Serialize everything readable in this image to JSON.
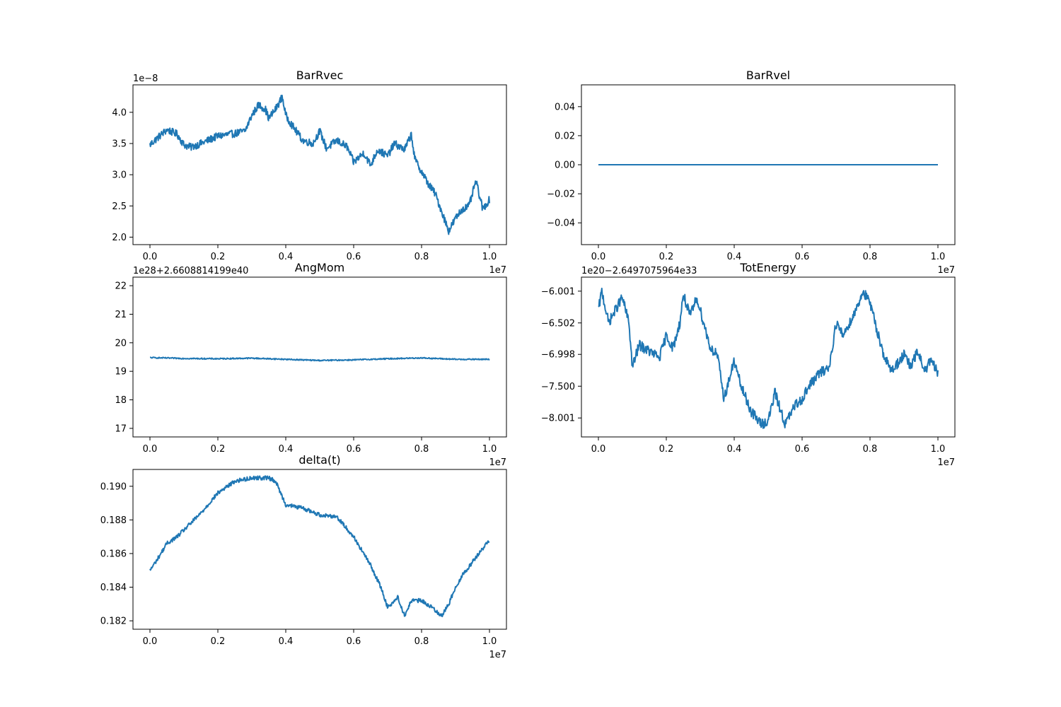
{
  "chart_data": [
    {
      "type": "line",
      "title": "BarRvec",
      "xlabel": "",
      "ylabel": "",
      "x_multiplier": "1e7",
      "y_offset": "1e−8",
      "xlim": [
        -0.05,
        1.05
      ],
      "ylim": [
        1.88,
        4.44
      ],
      "xticks": [
        0.0,
        0.2,
        0.4,
        0.6,
        0.8,
        1.0
      ],
      "xtick_labels": [
        "0.0",
        "0.2",
        "0.4",
        "0.6",
        "0.8",
        "1.0"
      ],
      "yticks": [
        2.0,
        2.5,
        3.0,
        3.5,
        4.0
      ],
      "ytick_labels": [
        "2.0",
        "2.5",
        "3.0",
        "3.5",
        "4.0"
      ],
      "line_color": "#1f77b4",
      "noise": 0.06,
      "x": [
        0.0,
        0.02,
        0.05,
        0.08,
        0.1,
        0.12,
        0.15,
        0.2,
        0.25,
        0.28,
        0.3,
        0.32,
        0.34,
        0.35,
        0.37,
        0.39,
        0.4,
        0.42,
        0.45,
        0.48,
        0.5,
        0.52,
        0.55,
        0.58,
        0.6,
        0.63,
        0.65,
        0.67,
        0.7,
        0.72,
        0.75,
        0.77,
        0.78,
        0.8,
        0.82,
        0.84,
        0.86,
        0.88,
        0.9,
        0.92,
        0.94,
        0.96,
        0.98,
        1.0
      ],
      "y": [
        3.48,
        3.58,
        3.72,
        3.65,
        3.48,
        3.44,
        3.5,
        3.62,
        3.66,
        3.7,
        3.95,
        4.12,
        4.05,
        3.9,
        4.05,
        4.25,
        3.95,
        3.78,
        3.55,
        3.5,
        3.7,
        3.42,
        3.55,
        3.45,
        3.2,
        3.35,
        3.15,
        3.4,
        3.3,
        3.5,
        3.4,
        3.65,
        3.25,
        3.05,
        2.85,
        2.7,
        2.4,
        2.1,
        2.3,
        2.45,
        2.5,
        2.9,
        2.45,
        2.6
      ]
    },
    {
      "type": "line",
      "title": "BarRvel",
      "xlabel": "",
      "ylabel": "",
      "x_multiplier": "1e7",
      "y_offset": "",
      "xlim": [
        -0.05,
        1.05
      ],
      "ylim": [
        -0.055,
        0.055
      ],
      "xticks": [
        0.0,
        0.2,
        0.4,
        0.6,
        0.8,
        1.0
      ],
      "xtick_labels": [
        "0.0",
        "0.2",
        "0.4",
        "0.6",
        "0.8",
        "1.0"
      ],
      "yticks": [
        -0.04,
        -0.02,
        0.0,
        0.02,
        0.04
      ],
      "ytick_labels": [
        "−0.04",
        "−0.02",
        "0.00",
        "0.02",
        "0.04"
      ],
      "line_color": "#1f77b4",
      "noise": 0,
      "x": [
        0.0,
        1.0
      ],
      "y": [
        0.0,
        0.0
      ]
    },
    {
      "type": "line",
      "title": "AngMom",
      "xlabel": "",
      "ylabel": "",
      "x_multiplier": "1e7",
      "y_offset": "1e28+2.6608814199e40",
      "xlim": [
        -0.05,
        1.05
      ],
      "ylim": [
        16.7,
        22.3
      ],
      "xticks": [
        0.0,
        0.2,
        0.4,
        0.6,
        0.8,
        1.0
      ],
      "xtick_labels": [
        "0.0",
        "0.2",
        "0.4",
        "0.6",
        "0.8",
        "1.0"
      ],
      "yticks": [
        17,
        18,
        19,
        20,
        21,
        22
      ],
      "ytick_labels": [
        "17",
        "18",
        "19",
        "20",
        "21",
        "22"
      ],
      "line_color": "#1f77b4",
      "noise": 0.02,
      "x": [
        0.0,
        0.1,
        0.2,
        0.3,
        0.4,
        0.5,
        0.6,
        0.7,
        0.8,
        0.9,
        1.0
      ],
      "y": [
        19.48,
        19.45,
        19.44,
        19.46,
        19.42,
        19.38,
        19.4,
        19.44,
        19.47,
        19.42,
        19.42
      ]
    },
    {
      "type": "line",
      "title": "TotEnergy",
      "xlabel": "",
      "ylabel": "",
      "x_multiplier": "1e7",
      "y_offset": "1e20−2.6497075964e33",
      "xlim": [
        -0.05,
        1.05
      ],
      "ylim": [
        -8.3,
        -5.78
      ],
      "xticks": [
        0.0,
        0.2,
        0.4,
        0.6,
        0.8,
        1.0
      ],
      "xtick_labels": [
        "0.0",
        "0.2",
        "0.4",
        "0.6",
        "0.8",
        "1.0"
      ],
      "yticks": [
        -8.001,
        -7.5,
        -6.998,
        -6.502,
        -6.001
      ],
      "ytick_labels": [
        "−8.001",
        "−7.500",
        "−6.998",
        "−6.502",
        "−6.001"
      ],
      "line_color": "#1f77b4",
      "noise": 0.08,
      "x": [
        0.0,
        0.01,
        0.03,
        0.05,
        0.07,
        0.09,
        0.1,
        0.12,
        0.15,
        0.18,
        0.2,
        0.22,
        0.24,
        0.25,
        0.27,
        0.29,
        0.31,
        0.33,
        0.35,
        0.37,
        0.4,
        0.42,
        0.45,
        0.48,
        0.5,
        0.52,
        0.55,
        0.58,
        0.6,
        0.62,
        0.65,
        0.68,
        0.7,
        0.72,
        0.75,
        0.78,
        0.8,
        0.82,
        0.84,
        0.86,
        0.88,
        0.9,
        0.92,
        0.94,
        0.96,
        0.98,
        1.0
      ],
      "y": [
        -6.3,
        -6.0,
        -6.5,
        -6.3,
        -6.1,
        -6.5,
        -7.2,
        -6.85,
        -6.95,
        -7.05,
        -6.7,
        -6.9,
        -6.5,
        -6.05,
        -6.4,
        -6.1,
        -6.5,
        -6.9,
        -7.0,
        -7.7,
        -7.1,
        -7.5,
        -7.9,
        -8.1,
        -8.05,
        -7.6,
        -8.1,
        -7.8,
        -7.7,
        -7.5,
        -7.3,
        -7.2,
        -6.5,
        -6.7,
        -6.4,
        -6.0,
        -6.2,
        -6.6,
        -7.0,
        -7.25,
        -7.15,
        -7.0,
        -7.2,
        -6.95,
        -7.25,
        -7.1,
        -7.3
      ]
    },
    {
      "type": "line",
      "title": "delta(t)",
      "xlabel": "",
      "ylabel": "",
      "x_multiplier": "1e7",
      "y_offset": "",
      "xlim": [
        -0.05,
        1.05
      ],
      "ylim": [
        0.1815,
        0.191
      ],
      "xticks": [
        0.0,
        0.2,
        0.4,
        0.6,
        0.8,
        1.0
      ],
      "xtick_labels": [
        "0.0",
        "0.2",
        "0.4",
        "0.6",
        "0.8",
        "1.0"
      ],
      "yticks": [
        0.182,
        0.184,
        0.186,
        0.188,
        0.19
      ],
      "ytick_labels": [
        "0.182",
        "0.184",
        "0.186",
        "0.188",
        "0.190"
      ],
      "line_color": "#1f77b4",
      "noise": 0.00012,
      "x": [
        0.0,
        0.02,
        0.05,
        0.08,
        0.1,
        0.15,
        0.2,
        0.25,
        0.3,
        0.35,
        0.37,
        0.4,
        0.45,
        0.5,
        0.55,
        0.6,
        0.65,
        0.68,
        0.7,
        0.73,
        0.75,
        0.77,
        0.8,
        0.83,
        0.86,
        0.88,
        0.9,
        0.92,
        0.95,
        0.98,
        1.0
      ],
      "y": [
        0.185,
        0.1856,
        0.1866,
        0.187,
        0.1874,
        0.1884,
        0.1896,
        0.1903,
        0.1905,
        0.1905,
        0.1903,
        0.1889,
        0.1887,
        0.1883,
        0.1882,
        0.187,
        0.1853,
        0.184,
        0.1828,
        0.1834,
        0.1823,
        0.1832,
        0.1832,
        0.1828,
        0.1823,
        0.183,
        0.184,
        0.1847,
        0.1855,
        0.1863,
        0.1868
      ]
    }
  ]
}
